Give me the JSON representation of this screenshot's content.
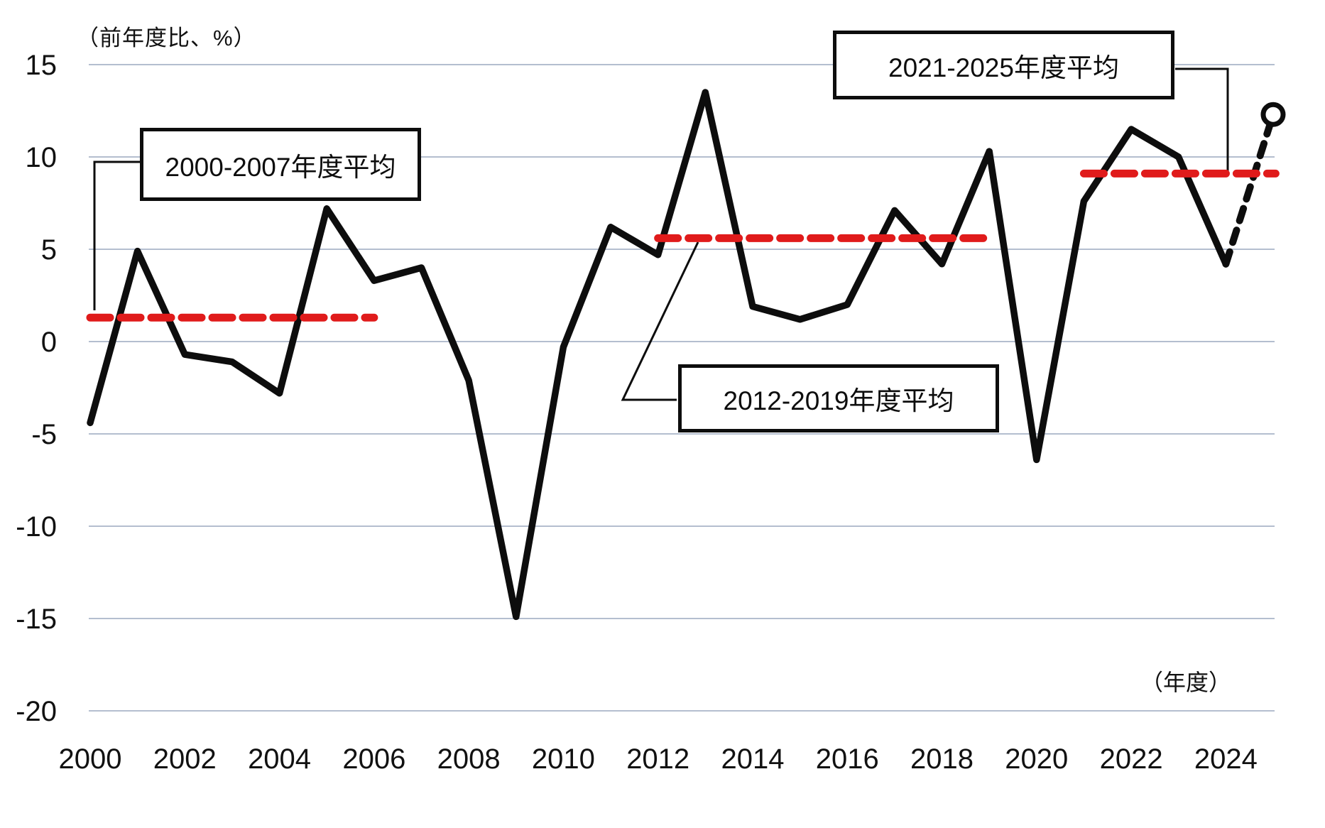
{
  "labels": {
    "y_axis_unit": "（前年度比、%）",
    "x_axis_unit": "（年度）"
  },
  "chart_data": {
    "type": "line",
    "title": "",
    "xlabel": "（年度）",
    "ylabel": "（前年度比、%）",
    "ylim": [
      -20,
      15
    ],
    "y_ticks": [
      15,
      10,
      5,
      0,
      -5,
      -10,
      -15,
      -20
    ],
    "x_tick_years": [
      2000,
      2002,
      2004,
      2006,
      2008,
      2010,
      2012,
      2014,
      2016,
      2018,
      2020,
      2022,
      2024
    ],
    "grid": "horizontal",
    "series": [
      {
        "name": "前年度比",
        "x": [
          2000,
          2001,
          2002,
          2003,
          2004,
          2005,
          2006,
          2007,
          2008,
          2009,
          2010,
          2011,
          2012,
          2013,
          2014,
          2015,
          2016,
          2017,
          2018,
          2019,
          2020,
          2021,
          2022,
          2023,
          2024,
          2025
        ],
        "values": [
          -4.4,
          4.9,
          -0.7,
          -1.1,
          -2.8,
          7.2,
          3.3,
          4.0,
          -2.1,
          -14.9,
          -0.3,
          6.2,
          4.7,
          13.5,
          1.9,
          1.2,
          2.0,
          7.1,
          4.2,
          10.3,
          -6.4,
          7.6,
          11.5,
          10.0,
          4.2,
          12.3
        ],
        "forecast_from_year": 2024,
        "forecast_marker": "open-circle",
        "color": "#0d0d0d"
      }
    ],
    "averages": [
      {
        "label": "2000-2007年度平均",
        "value": 1.3,
        "from": 2000,
        "to": 2007,
        "line_from": 2000,
        "line_to": 2006.0
      },
      {
        "label": "2012-2019年度平均",
        "value": 5.6,
        "from": 2012,
        "to": 2019,
        "line_from": 2012,
        "line_to": 2019.0
      },
      {
        "label": "2021-2025年度平均",
        "value": 9.1,
        "from": 2021,
        "to": 2025,
        "line_from": 2021,
        "line_to": 2025.05
      }
    ],
    "colors": {
      "line": "#0d0d0d",
      "average_line": "#e01b1b",
      "gridline": "#aab4c8",
      "background": "#ffffff"
    },
    "legend": "none"
  }
}
